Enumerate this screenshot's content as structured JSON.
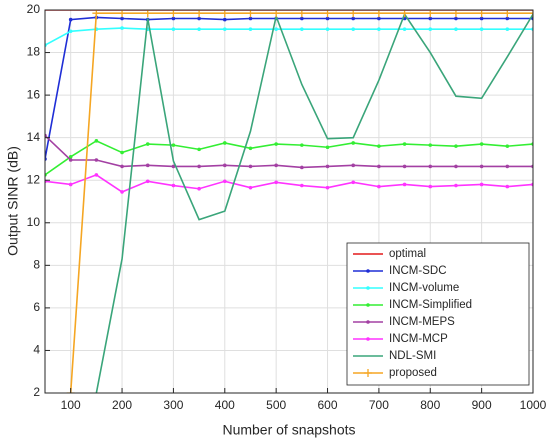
{
  "chart_data": {
    "type": "line",
    "xlabel": "Number of snapshots",
    "ylabel": "Output SINR (dB)",
    "x": [
      50,
      100,
      150,
      200,
      250,
      300,
      350,
      400,
      450,
      500,
      550,
      600,
      650,
      700,
      750,
      800,
      850,
      900,
      950,
      1000
    ],
    "xlim": [
      50,
      1000
    ],
    "xticks": [
      100,
      200,
      300,
      400,
      500,
      600,
      700,
      800,
      900,
      1000
    ],
    "ylim": [
      2,
      20
    ],
    "yticks": [
      2,
      4,
      6,
      8,
      10,
      12,
      14,
      16,
      18,
      20
    ],
    "grid": true,
    "legend": "lower right",
    "series": [
      {
        "name": "optimal",
        "color": "#e41a1c",
        "marker": "none",
        "values": [
          20,
          20,
          20,
          20,
          20,
          20,
          20,
          20,
          20,
          20,
          20,
          20,
          20,
          20,
          20,
          20,
          20,
          20,
          20,
          20
        ]
      },
      {
        "name": "INCM-SDC",
        "color": "#1f2ed6",
        "marker": "dot",
        "values": [
          13,
          19.55,
          19.65,
          19.6,
          19.55,
          19.6,
          19.6,
          19.55,
          19.6,
          19.6,
          19.6,
          19.6,
          19.6,
          19.6,
          19.6,
          19.6,
          19.6,
          19.6,
          19.6,
          19.6
        ]
      },
      {
        "name": "INCM-volume",
        "color": "#33ffff",
        "marker": "dot",
        "values": [
          18.35,
          19.0,
          19.1,
          19.15,
          19.1,
          19.1,
          19.1,
          19.1,
          19.1,
          19.1,
          19.1,
          19.1,
          19.1,
          19.1,
          19.1,
          19.1,
          19.1,
          19.1,
          19.1,
          19.1
        ]
      },
      {
        "name": "INCM-Simplified",
        "color": "#33ee33",
        "marker": "dot",
        "values": [
          12.25,
          13.1,
          13.85,
          13.3,
          13.7,
          13.65,
          13.45,
          13.75,
          13.5,
          13.7,
          13.65,
          13.55,
          13.75,
          13.6,
          13.7,
          13.65,
          13.6,
          13.7,
          13.6,
          13.7
        ]
      },
      {
        "name": "INCM-MEPS",
        "color": "#a340a3",
        "marker": "dot",
        "values": [
          14.1,
          12.95,
          12.95,
          12.65,
          12.7,
          12.65,
          12.65,
          12.7,
          12.65,
          12.7,
          12.6,
          12.65,
          12.7,
          12.65,
          12.65,
          12.65,
          12.65,
          12.65,
          12.65,
          12.65
        ]
      },
      {
        "name": "INCM-MCP",
        "color": "#ff33ff",
        "marker": "dot",
        "values": [
          11.95,
          11.8,
          12.25,
          11.45,
          11.95,
          11.75,
          11.6,
          11.95,
          11.65,
          11.9,
          11.75,
          11.65,
          11.9,
          11.7,
          11.8,
          11.7,
          11.75,
          11.8,
          11.7,
          11.8
        ]
      },
      {
        "name": "NDL-SMI",
        "color": "#3aa57a",
        "marker": "none",
        "values": [
          null,
          null,
          2,
          8.3,
          19.6,
          12.9,
          10.15,
          10.55,
          14.3,
          19.7,
          16.5,
          13.95,
          14.0,
          16.7,
          19.8,
          18.0,
          15.95,
          15.85,
          17.8,
          19.8
        ]
      },
      {
        "name": "proposed",
        "color": "#f5a623",
        "marker": "plus",
        "values": [
          null,
          2,
          19.85,
          19.85,
          19.85,
          19.85,
          19.85,
          19.85,
          19.85,
          19.85,
          19.85,
          19.85,
          19.85,
          19.85,
          19.85,
          19.85,
          19.85,
          19.85,
          19.85,
          19.85
        ]
      }
    ]
  }
}
